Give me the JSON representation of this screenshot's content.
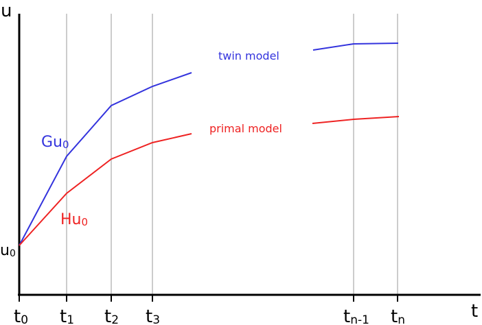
{
  "axes": {
    "y_label": "u",
    "x_label": "t",
    "u0_label": {
      "main": "u",
      "sub": "0"
    }
  },
  "time_points": [
    {
      "main": "t",
      "sub": "0"
    },
    {
      "main": "t",
      "sub": "1"
    },
    {
      "main": "t",
      "sub": "2"
    },
    {
      "main": "t",
      "sub": "3"
    },
    {
      "main": "t",
      "sub": "n-1"
    },
    {
      "main": "t",
      "sub": "n"
    }
  ],
  "curves": {
    "twin": {
      "name": "twin model",
      "operator_label": {
        "main": "Gu",
        "sub": "0"
      },
      "color": "#3333dd"
    },
    "primal": {
      "name": "primal model",
      "operator_label": {
        "main": "Hu",
        "sub": "0"
      },
      "color": "#ee2222"
    }
  },
  "colors": {
    "axis": "#000000",
    "gridline": "#999999",
    "twin": "#3333dd",
    "primal": "#ee2222"
  }
}
